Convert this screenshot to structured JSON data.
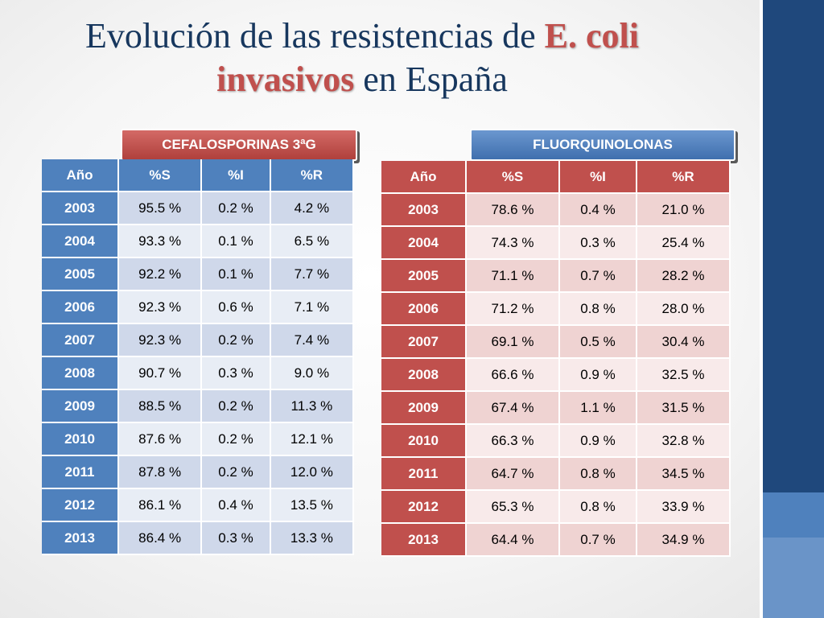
{
  "title": {
    "part1": "Evolución de las resistencias de ",
    "highlight1": "E. coli",
    "highlight2": "invasivos",
    "part2": " en España"
  },
  "colors": {
    "blue": "#4f81bd",
    "red": "#c0504d",
    "navy": "#1f487c",
    "title": "#17375e"
  },
  "left_table": {
    "badge": "CEFALOSPORINAS 3ªG",
    "headers": [
      "Año",
      "%S",
      "%I",
      "%R"
    ],
    "rows": [
      [
        "2003",
        "95.5 %",
        "0.2 %",
        "4.2 %"
      ],
      [
        "2004",
        "93.3 %",
        "0.1 %",
        "6.5 %"
      ],
      [
        "2005",
        "92.2 %",
        "0.1 %",
        "7.7 %"
      ],
      [
        "2006",
        "92.3 %",
        "0.6 %",
        "7.1 %"
      ],
      [
        "2007",
        "92.3 %",
        "0.2 %",
        "7.4 %"
      ],
      [
        "2008",
        "90.7 %",
        "0.3 %",
        "9.0 %"
      ],
      [
        "2009",
        "88.5 %",
        "0.2 %",
        "11.3 %"
      ],
      [
        "2010",
        "87.6 %",
        "0.2 %",
        "12.1 %"
      ],
      [
        "2011",
        "87.8 %",
        "0.2 %",
        "12.0 %"
      ],
      [
        "2012",
        "86.1 %",
        "0.4 %",
        "13.5 %"
      ],
      [
        "2013",
        "86.4 %",
        "0.3 %",
        "13.3 %"
      ]
    ]
  },
  "right_table": {
    "badge": "FLUORQUINOLONAS",
    "headers": [
      "Año",
      "%S",
      "%I",
      "%R"
    ],
    "rows": [
      [
        "2003",
        "78.6 %",
        "0.4 %",
        "21.0 %"
      ],
      [
        "2004",
        "74.3 %",
        "0.3 %",
        "25.4 %"
      ],
      [
        "2005",
        "71.1 %",
        "0.7 %",
        "28.2 %"
      ],
      [
        "2006",
        "71.2 %",
        "0.8 %",
        "28.0 %"
      ],
      [
        "2007",
        "69.1 %",
        "0.5 %",
        "30.4 %"
      ],
      [
        "2008",
        "66.6 %",
        "0.9 %",
        "32.5 %"
      ],
      [
        "2009",
        "67.4 %",
        "1.1 %",
        "31.5 %"
      ],
      [
        "2010",
        "66.3 %",
        "0.9 %",
        "32.8 %"
      ],
      [
        "2011",
        "64.7 %",
        "0.8 %",
        "34.5 %"
      ],
      [
        "2012",
        "65.3 %",
        "0.8 %",
        "33.9 %"
      ],
      [
        "2013",
        "64.4 %",
        "0.7 %",
        "34.9 %"
      ]
    ]
  }
}
